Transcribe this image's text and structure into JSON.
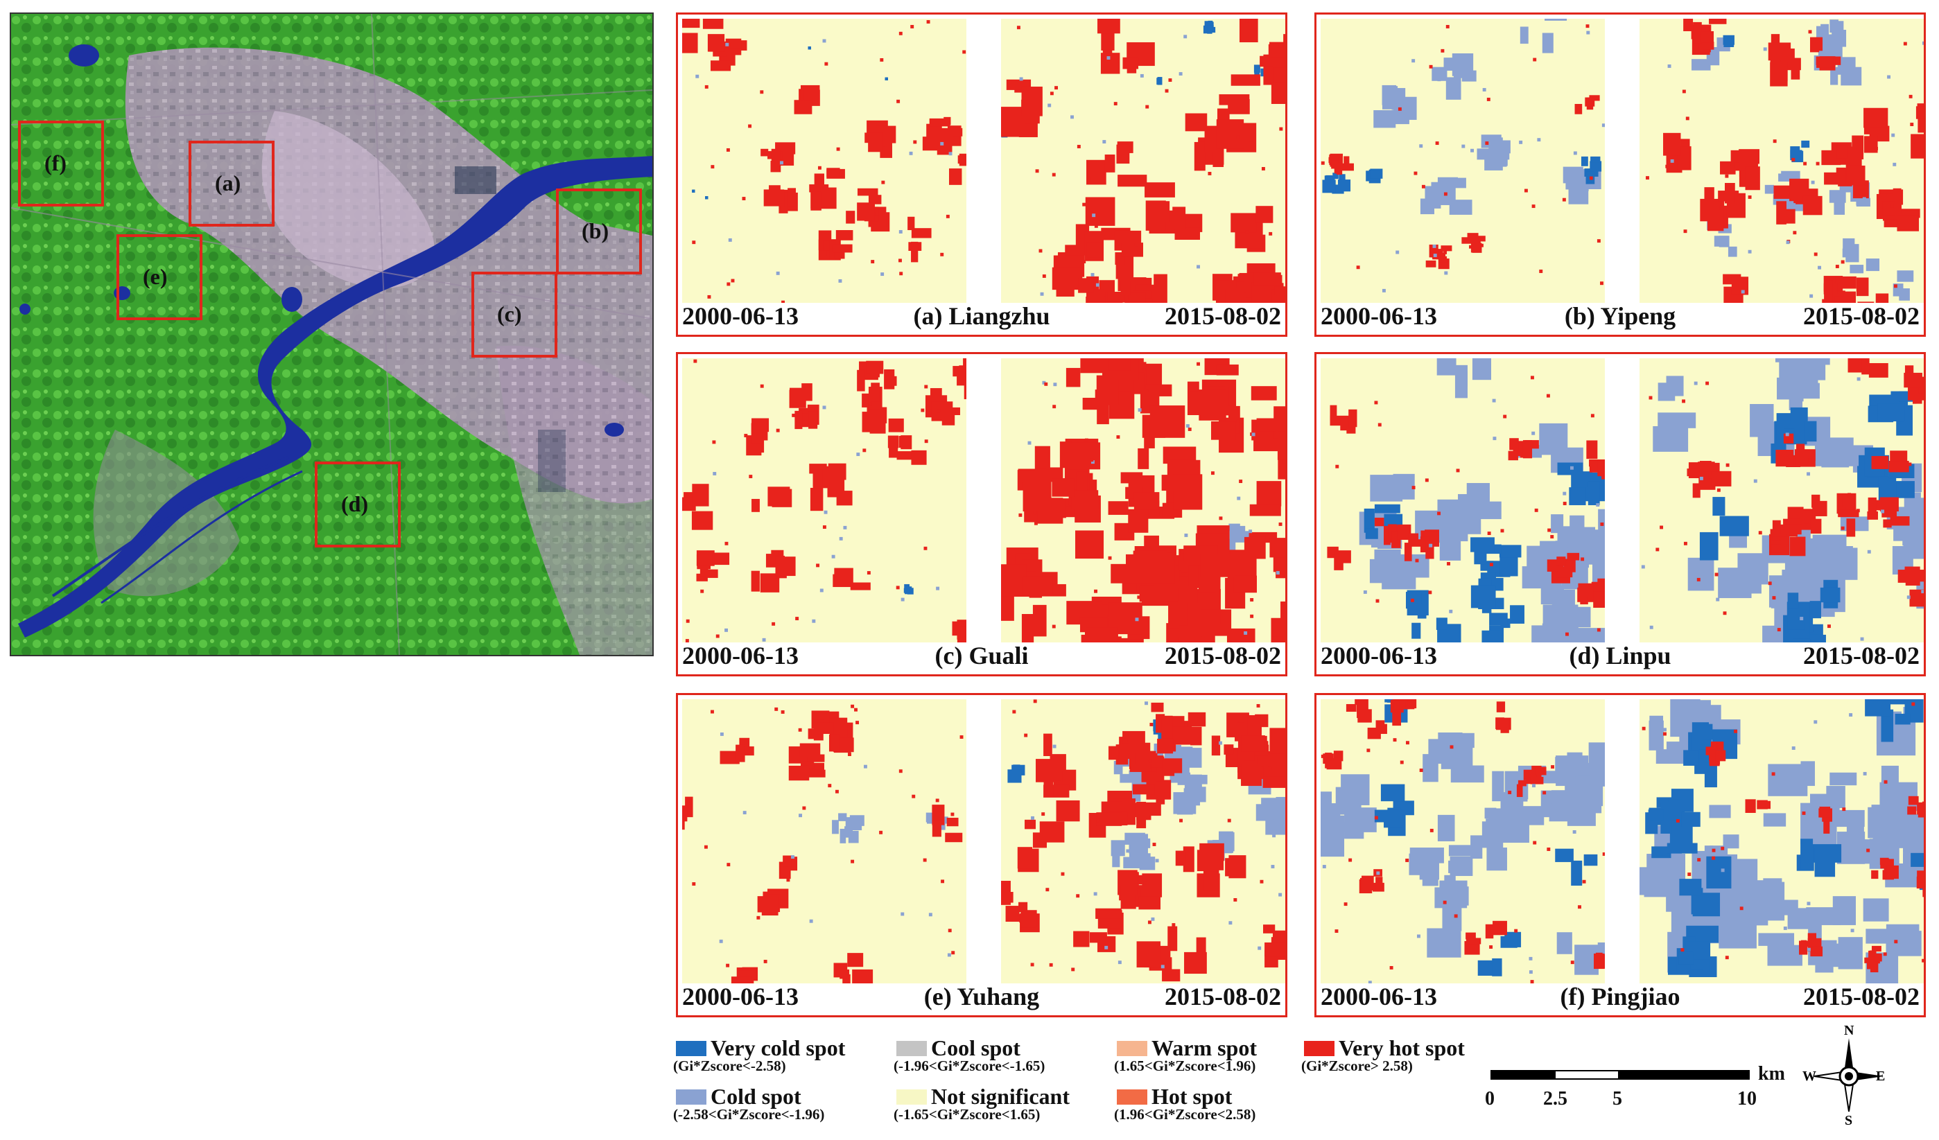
{
  "overview": {
    "labels": [
      "(f)",
      "(a)",
      "(b)",
      "(e)",
      "(c)",
      "(d)"
    ]
  },
  "panels": [
    {
      "id": "a",
      "left_date": "2000-06-13",
      "name": "(a) Liangzhu",
      "right_date": "2015-08-02"
    },
    {
      "id": "b",
      "left_date": "2000-06-13",
      "name": "(b) Yipeng",
      "right_date": "2015-08-02"
    },
    {
      "id": "c",
      "left_date": "2000-06-13",
      "name": "(c) Guali",
      "right_date": "2015-08-02"
    },
    {
      "id": "d",
      "left_date": "2000-06-13",
      "name": "(d) Linpu",
      "right_date": "2015-08-02"
    },
    {
      "id": "e",
      "left_date": "2000-06-13",
      "name": "(e) Yuhang",
      "right_date": "2015-08-02"
    },
    {
      "id": "f",
      "left_date": "2000-06-13",
      "name": "(f) Pingjiao",
      "right_date": "2015-08-02"
    }
  ],
  "legend": [
    {
      "name": "Very cold spot",
      "range": "(Gi*Zscore<-2.58)",
      "color": "#1f6fbf"
    },
    {
      "name": "Cool spot",
      "range": "(-1.96<Gi*Zscore<-1.65)",
      "color": "#c4c4c4"
    },
    {
      "name": "Warm spot",
      "range": "(1.65<Gi*Zscore<1.96)",
      "color": "#f6b58f"
    },
    {
      "name": "Very hot spot",
      "range": "(Gi*Zscore> 2.58)",
      "color": "#e8231c"
    },
    {
      "name": "Cold spot",
      "range": "(-2.58<Gi*Zscore<-1.96)",
      "color": "#8aa2d2"
    },
    {
      "name": "Not significant",
      "range": "(-1.65<Gi*Zscore<1.65)",
      "color": "#f7f7c5"
    },
    {
      "name": "Hot spot",
      "range": "(1.96<Gi*Zscore<2.58)",
      "color": "#f26b45"
    }
  ],
  "scale_bar": {
    "ticks": [
      "0",
      "2.5",
      "5",
      "10"
    ],
    "unit": "km"
  },
  "compass": {
    "n": "N",
    "s": "S",
    "e": "E",
    "w": "W"
  },
  "colors": {
    "water": "#1c2fa0",
    "vegetation": "#3fae33",
    "urban": "#b59ab8",
    "aoi_box": "#e0261c",
    "not_significant": "#fafac9",
    "hot": "#e8231c",
    "cold": "#1f6fbf",
    "cold_light": "#8aa2d2"
  }
}
